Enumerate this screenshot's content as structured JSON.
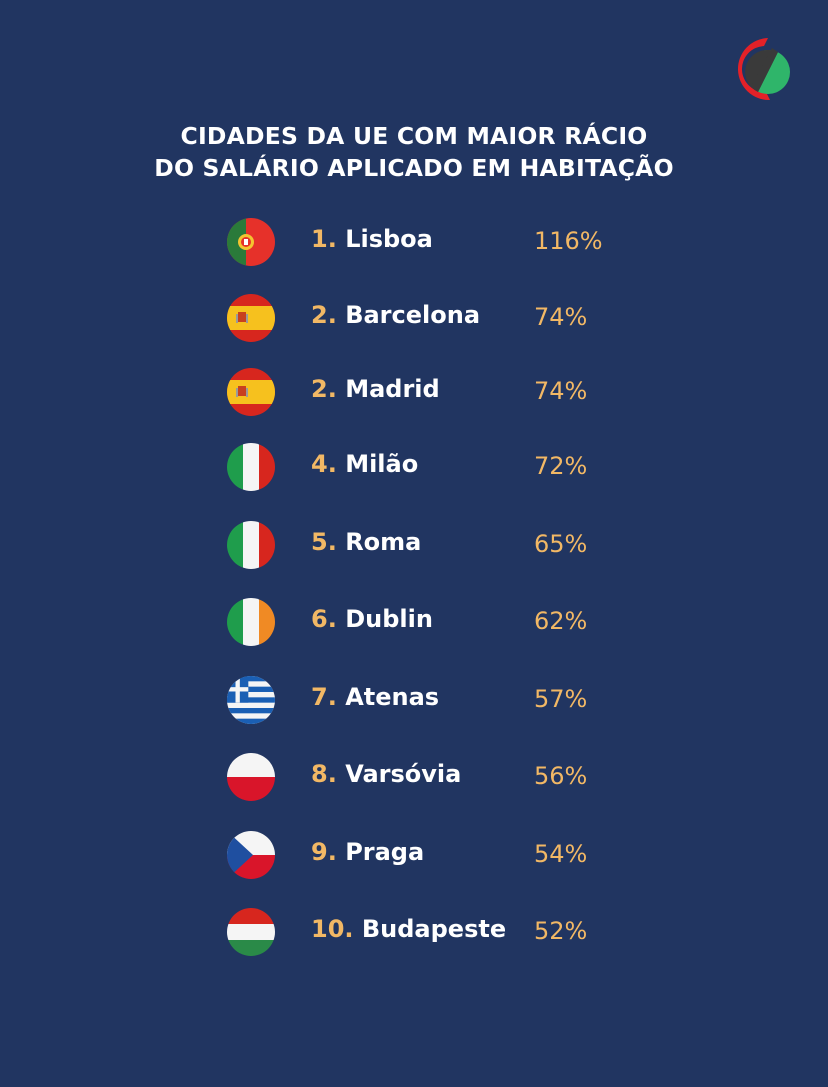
{
  "title": {
    "line1": "CIDADES DA UE COM MAIOR RÁCIO",
    "line2": "DO SALÁRIO APLICADO EM HABITAÇÃO"
  },
  "logo": {
    "icon": "brand-logo-icon",
    "colors": [
      "#e32128",
      "#3a3a3a",
      "#2fb56a"
    ]
  },
  "colors": {
    "background": "#213561",
    "accent": "#f2b865",
    "text": "#ffffff"
  },
  "ranking": [
    {
      "rank": "1.",
      "city": "Lisboa",
      "value": "116%",
      "flag": "portugal-flag-icon"
    },
    {
      "rank": "2.",
      "city": "Barcelona",
      "value": "74%",
      "flag": "spain-flag-icon"
    },
    {
      "rank": "2.",
      "city": "Madrid",
      "value": "74%",
      "flag": "spain-flag-icon"
    },
    {
      "rank": "4.",
      "city": "Milão",
      "value": "72%",
      "flag": "italy-flag-icon"
    },
    {
      "rank": "5.",
      "city": "Roma",
      "value": "65%",
      "flag": "italy-flag-icon"
    },
    {
      "rank": "6.",
      "city": "Dublin",
      "value": "62%",
      "flag": "ireland-flag-icon"
    },
    {
      "rank": "7.",
      "city": "Atenas",
      "value": "57%",
      "flag": "greece-flag-icon"
    },
    {
      "rank": "8.",
      "city": "Varsóvia",
      "value": "56%",
      "flag": "poland-flag-icon"
    },
    {
      "rank": "9.",
      "city": "Praga",
      "value": "54%",
      "flag": "czech-flag-icon"
    },
    {
      "rank": "10.",
      "city": "Budapeste",
      "value": "52%",
      "flag": "hungary-flag-icon"
    }
  ]
}
